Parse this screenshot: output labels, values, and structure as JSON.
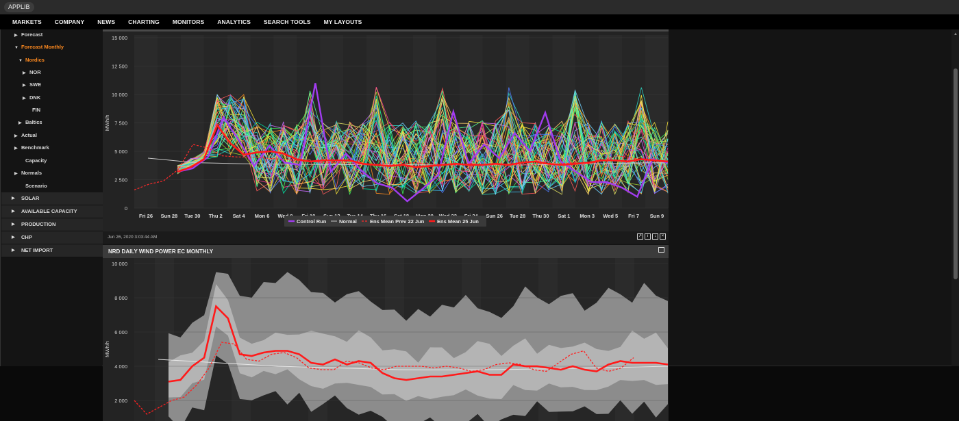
{
  "app": {
    "badge": "APPLIB"
  },
  "nav": [
    "MARKETS",
    "COMPANY",
    "NEWS",
    "CHARTING",
    "MONITORS",
    "ANALYTICS",
    "SEARCH TOOLS",
    "MY LAYOUTS"
  ],
  "sidebar": {
    "tree": [
      {
        "label": "Forecast",
        "arrow": "right",
        "active": false
      },
      {
        "label": "Forecast Monthly",
        "arrow": "down",
        "active": true
      },
      {
        "label": "Nordics",
        "arrow": "down",
        "active": true
      },
      {
        "label": "NOR",
        "arrow": "right",
        "active": false
      },
      {
        "label": "SWE",
        "arrow": "right",
        "active": false
      },
      {
        "label": "DNK",
        "arrow": "right",
        "active": false
      },
      {
        "label": "FIN",
        "arrow": "",
        "active": false
      },
      {
        "label": "Baltics",
        "arrow": "right",
        "active": false
      },
      {
        "label": "Actual",
        "arrow": "right",
        "active": false
      },
      {
        "label": "Benchmark",
        "arrow": "right",
        "active": false
      },
      {
        "label": "Capacity",
        "arrow": "",
        "active": false
      },
      {
        "label": "Normals",
        "arrow": "right",
        "active": false
      },
      {
        "label": "Scenario",
        "arrow": "",
        "active": false
      }
    ],
    "sections": [
      "SOLAR",
      "AVAILABLE CAPACITY",
      "PRODUCTION",
      "CHP",
      "NET IMPORT"
    ]
  },
  "panel1": {
    "timestamp": "Jun 26, 2020 3:03:44 AM",
    "tools": [
      "link-out-icon",
      "info-icon",
      "download-icon",
      "excel-icon"
    ]
  },
  "panel2": {
    "title": "NRD DAILY WIND POWER EC MONTHLY"
  },
  "chart_data": [
    {
      "type": "line",
      "title": "",
      "ylabel": "MWh/h",
      "ylim": [
        0,
        15000
      ],
      "yticks": [
        "0",
        "2 500",
        "5 000",
        "7 500",
        "10 000",
        "12 500",
        "15 000"
      ],
      "xticks": [
        "Fri 26",
        "Sun 28",
        "Tue 30",
        "Thu 2",
        "Sat 4",
        "Mon 6",
        "Wed 8",
        "Fri 10",
        "Sun 12",
        "Tue 14",
        "Thu 16",
        "Sat 18",
        "Mon 20",
        "Wed 22",
        "Fri 24",
        "Sun 26",
        "Tue 28",
        "Thu 30",
        "Sat 1",
        "Mon 3",
        "Wed 5",
        "Fri 7",
        "Sun 9"
      ],
      "legend": [
        "Control Run",
        "Normal",
        "Ens Mean Prev 22 Jun",
        "Ens Mean 25 Jun"
      ],
      "legend_placement": "bottom",
      "colors": {
        "control": "#a23cf0",
        "normal": "#c8c8c8",
        "prev": "#ff2a2a",
        "mean": "#ff1a1a"
      },
      "series": [
        {
          "name": "Ens Mean 25 Jun",
          "values": [
            3200,
            3600,
            4300,
            7300,
            5700,
            4700,
            4900,
            5000,
            4800,
            4300,
            4100,
            4200,
            4200,
            4200,
            3900,
            3800,
            3700,
            3800,
            3600,
            3700,
            3800,
            3900,
            3800,
            3800,
            3900,
            3800,
            4000,
            4100,
            3900,
            3800,
            3900,
            4000,
            4200,
            4200,
            4100,
            4300,
            4200,
            4100
          ]
        },
        {
          "name": "Ens Mean Prev 22 Jun",
          "values": [
            1600,
            2100,
            2400,
            3400,
            5600,
            5300,
            4600,
            4500,
            4500,
            4400,
            4300,
            4200,
            4100,
            4000,
            4000,
            3900,
            3800,
            3900,
            3800,
            4000,
            3900,
            3800,
            3800,
            3900,
            3800,
            3900,
            3800,
            3800,
            3900,
            3900,
            4000,
            3900,
            4200,
            4600,
            4400,
            4200
          ]
        },
        {
          "name": "Normal",
          "values": [
            4400,
            4200,
            4000,
            3950,
            3900,
            3880,
            3860,
            3850,
            3830,
            3820,
            3820,
            3810,
            3800,
            3800,
            3800,
            3800,
            3810,
            3830,
            3860,
            3900,
            3940,
            3980,
            4000
          ]
        },
        {
          "name": "Control Run",
          "values": [
            3200,
            3500,
            4500,
            8000,
            6000,
            3700,
            5500,
            4000,
            3800,
            11000,
            3200,
            4800,
            3300,
            2200,
            1800,
            600,
            1700,
            2900,
            8500,
            3900,
            5600,
            4400,
            6600,
            5000,
            8400,
            4100,
            3200,
            2300,
            2300,
            1800,
            1000,
            4300,
            4000
          ]
        }
      ]
    },
    {
      "type": "area",
      "title": "NRD DAILY WIND POWER EC MONTHLY",
      "ylabel": "MWh/h",
      "ylim": [
        0,
        10000
      ],
      "yticks": [
        "2 000",
        "4 000",
        "6 000",
        "8 000",
        "10 000"
      ],
      "series": [
        {
          "name": "Ens Mean 25 Jun",
          "values": [
            3100,
            3200,
            4000,
            4500,
            7500,
            6800,
            4700,
            4600,
            4800,
            4900,
            4900,
            4700,
            4200,
            4100,
            4400,
            4100,
            4300,
            4200,
            3600,
            3300,
            3200,
            3300,
            3400,
            3400,
            3500,
            3600,
            3700,
            3500,
            3500,
            4100,
            4000,
            4000,
            3900,
            3800,
            4000,
            3800,
            3700,
            4100,
            4300,
            4200,
            4200,
            4200,
            4100
          ]
        },
        {
          "name": "Ens Mean Prev 22 Jun",
          "values": [
            2000,
            1200,
            1600,
            2000,
            2200,
            2900,
            3900,
            5400,
            5300,
            4400,
            4300,
            4700,
            4800,
            4500,
            3900,
            3800,
            3800,
            4300,
            4200,
            3900,
            3800,
            4000,
            4000,
            4000,
            3900,
            4000,
            3900,
            3700,
            3800,
            4100,
            4200,
            4100,
            3800,
            3700,
            4200,
            4700,
            4900,
            3900,
            3700,
            3900,
            4500
          ]
        },
        {
          "name": "Normal",
          "values": [
            4400,
            4300,
            4200,
            4100,
            4000,
            3950,
            3900,
            3850,
            3800,
            3790,
            3790,
            3800,
            3820,
            3850,
            3880,
            3920,
            3960,
            4000
          ]
        }
      ]
    }
  ]
}
